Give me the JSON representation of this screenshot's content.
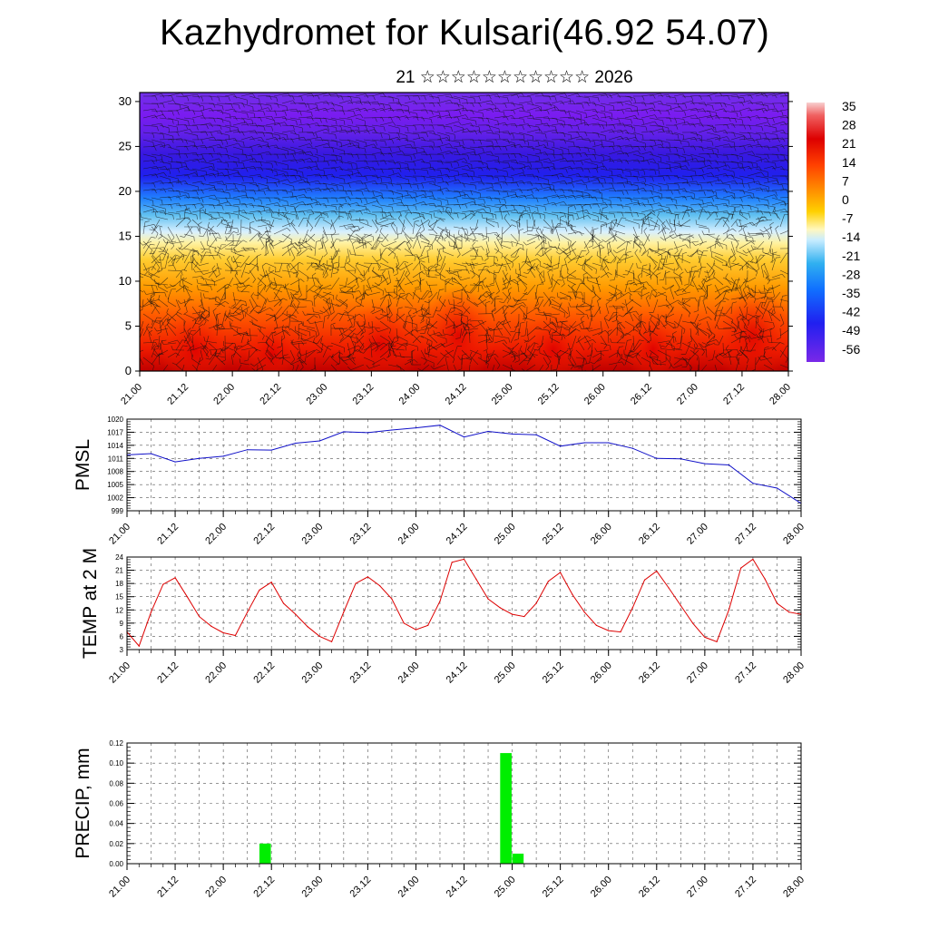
{
  "header": {
    "title": "Kazhydromet for Kulsari(46.92 54.07)",
    "subtitle": "21 ☆☆☆☆☆☆☆☆☆☆☆ 2026"
  },
  "colors": {
    "pmsl_line": "#1010c8",
    "temp_line": "#dd0000",
    "precip_bar": "#00ee00",
    "grid": "#444444"
  },
  "chart_data": [
    {
      "type": "heatmap",
      "title": "",
      "xlabel": "",
      "ylabel": "",
      "x_tick_labels": [
        "21.00",
        "21.12",
        "22.00",
        "22.12",
        "23.00",
        "23.12",
        "24.00",
        "24.12",
        "25.00",
        "25.12",
        "26.00",
        "26.12",
        "27.00",
        "27.12",
        "28.00"
      ],
      "y_ticks": [
        0,
        5,
        10,
        15,
        20,
        25,
        30
      ],
      "ylim": [
        0,
        31
      ],
      "colorbar_labels": [
        "35",
        "28",
        "21",
        "14",
        "7",
        "0",
        "-7",
        "-14",
        "-21",
        "-28",
        "-35",
        "-42",
        "-49",
        "-56"
      ],
      "description_of_field": "temperature with wind barbs"
    },
    {
      "type": "line",
      "ylabel": "PMSL",
      "x_tick_labels": [
        "21.00",
        "21.12",
        "22.00",
        "22.12",
        "23.00",
        "23.12",
        "24.00",
        "24.12",
        "25.00",
        "25.12",
        "26.00",
        "26.12",
        "27.00",
        "27.12",
        "28.00"
      ],
      "y_tick_labels": [
        "999",
        "1002",
        "1005",
        "1008",
        "1011",
        "1014",
        "1017",
        "1020"
      ],
      "ylim": [
        999,
        1020
      ],
      "xlim": [
        0,
        14
      ],
      "series": [
        {
          "name": "PMSL",
          "x": [
            0,
            0.5,
            1,
            1.5,
            2,
            2.5,
            3,
            3.5,
            4,
            4.5,
            5,
            5.5,
            6,
            6.5,
            7,
            7.5,
            8,
            8.5,
            9,
            9.5,
            10,
            10.5,
            11,
            11.5,
            12,
            12.5,
            13,
            13.5,
            14
          ],
          "values": [
            1011.8,
            1012.1,
            1010.2,
            1011.0,
            1011.5,
            1013.0,
            1012.9,
            1014.5,
            1015.0,
            1017.1,
            1016.9,
            1017.5,
            1018.0,
            1018.6,
            1015.9,
            1017.2,
            1016.6,
            1016.4,
            1013.8,
            1014.6,
            1014.6,
            1013.3,
            1011.0,
            1010.9,
            1009.8,
            1009.5,
            1005.3,
            1004.2,
            1000.7
          ]
        }
      ]
    },
    {
      "type": "line",
      "ylabel": "TEMP at 2 M",
      "x_tick_labels": [
        "21.00",
        "21.12",
        "22.00",
        "22.12",
        "23.00",
        "23.12",
        "24.00",
        "24.12",
        "25.00",
        "25.12",
        "26.00",
        "26.12",
        "27.00",
        "27.12",
        "28.00"
      ],
      "y_tick_labels": [
        "3",
        "6",
        "9",
        "12",
        "15",
        "18",
        "21",
        "24"
      ],
      "ylim": [
        3,
        24
      ],
      "xlim": [
        0,
        14
      ],
      "series": [
        {
          "name": "TEMP",
          "x": [
            0,
            0.25,
            0.5,
            0.75,
            1,
            1.25,
            1.5,
            1.75,
            2,
            2.25,
            2.5,
            2.75,
            3,
            3.25,
            3.5,
            3.75,
            4,
            4.25,
            4.5,
            4.75,
            5,
            5.25,
            5.5,
            5.75,
            6,
            6.25,
            6.5,
            6.75,
            7,
            7.25,
            7.5,
            7.75,
            8,
            8.25,
            8.5,
            8.75,
            9,
            9.25,
            9.5,
            9.75,
            10,
            10.25,
            10.5,
            10.75,
            11,
            11.25,
            11.5,
            11.75,
            12,
            12.25,
            12.5,
            12.75,
            13,
            13.25,
            13.5,
            13.75,
            14
          ],
          "values": [
            7.0,
            3.8,
            11.5,
            17.8,
            19.3,
            15.0,
            10.5,
            8.3,
            6.8,
            6.2,
            11.5,
            16.5,
            18.3,
            13.5,
            11.0,
            8.2,
            6.0,
            4.8,
            11.5,
            18.0,
            19.5,
            17.5,
            14.5,
            9.0,
            7.5,
            8.5,
            14.0,
            22.8,
            23.5,
            19.0,
            14.5,
            12.5,
            11.0,
            10.5,
            13.5,
            18.5,
            20.5,
            15.5,
            11.5,
            8.5,
            7.3,
            7.0,
            12.5,
            18.8,
            20.8,
            17.0,
            13.0,
            9.0,
            5.8,
            4.8,
            12.0,
            21.5,
            23.5,
            19.0,
            13.5,
            11.5,
            11.0
          ]
        }
      ]
    },
    {
      "type": "bar",
      "ylabel": "PRECIP, mm",
      "x_tick_labels": [
        "21.00",
        "21.12",
        "22.00",
        "22.12",
        "23.00",
        "23.12",
        "24.00",
        "24.12",
        "25.00",
        "25.12",
        "26.00",
        "26.12",
        "27.00",
        "27.12",
        "28.00"
      ],
      "y_tick_labels": [
        "0.00",
        "0.02",
        "0.04",
        "0.06",
        "0.08",
        "0.10",
        "0.12"
      ],
      "ylim": [
        0,
        0.12
      ],
      "xlim": [
        0,
        14
      ],
      "bars": [
        {
          "x": 2.75,
          "value": 0.02
        },
        {
          "x": 7.75,
          "value": 0.11
        },
        {
          "x": 8.0,
          "value": 0.01
        }
      ]
    }
  ]
}
